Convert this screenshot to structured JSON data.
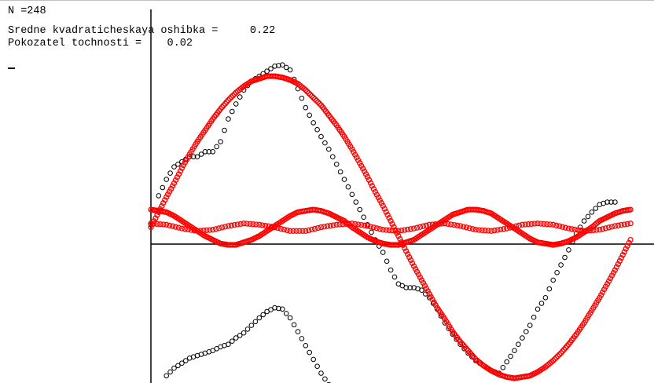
{
  "header": {
    "n_line": "N =248",
    "rms_line": "Sredne kvadraticheskaya oshibka =     0.22",
    "accuracy_line": "Pokozatel tochnosti =    0.02",
    "cursor": "_"
  },
  "colors": {
    "background": "#ffffff",
    "axis": "#000000",
    "data_markers": "#000000",
    "fit_markers": "#ff0000"
  },
  "chart_data": {
    "type": "scatter",
    "title": "",
    "xlabel": "",
    "ylabel": "",
    "xlim": [
      0,
      6.28
    ],
    "ylim": [
      -1.3,
      1.45
    ],
    "grid": false,
    "legend": "none",
    "series": [
      {
        "marker": "circle-open",
        "color": "#000000",
        "points": [
          [
            0.0,
            0.02
          ],
          [
            0.1,
            0.25
          ],
          [
            0.2,
            0.38
          ],
          [
            0.3,
            0.48
          ],
          [
            0.4,
            0.52
          ],
          [
            0.5,
            0.56
          ],
          [
            0.6,
            0.56
          ],
          [
            0.7,
            0.6
          ],
          [
            0.8,
            0.6
          ],
          [
            0.9,
            0.68
          ],
          [
            1.0,
            0.86
          ],
          [
            1.1,
            0.98
          ],
          [
            1.2,
            1.09
          ],
          [
            1.3,
            1.16
          ],
          [
            1.4,
            1.2
          ],
          [
            1.5,
            1.24
          ],
          [
            1.6,
            1.28
          ],
          [
            1.7,
            1.29
          ],
          [
            1.8,
            1.25
          ],
          [
            1.9,
            1.1
          ],
          [
            2.0,
            0.95
          ],
          [
            2.1,
            0.83
          ],
          [
            2.2,
            0.72
          ],
          [
            2.3,
            0.62
          ],
          [
            2.4,
            0.5
          ],
          [
            2.5,
            0.38
          ],
          [
            2.6,
            0.26
          ],
          [
            2.7,
            0.14
          ],
          [
            2.8,
            0.02
          ],
          [
            2.9,
            -0.1
          ],
          [
            3.0,
            -0.2
          ],
          [
            3.1,
            -0.34
          ],
          [
            3.2,
            -0.45
          ],
          [
            3.3,
            -0.48
          ],
          [
            3.4,
            -0.48
          ],
          [
            3.5,
            -0.5
          ],
          [
            3.6,
            -0.56
          ],
          [
            3.7,
            -0.65
          ],
          [
            3.8,
            -0.76
          ],
          [
            3.9,
            -0.85
          ],
          [
            4.0,
            -0.93
          ],
          [
            4.1,
            -1.0
          ],
          [
            4.2,
            -1.06
          ],
          [
            4.3,
            -1.1
          ],
          [
            4.4,
            -1.14
          ],
          [
            4.5,
            -1.16
          ],
          [
            4.6,
            -1.07
          ],
          [
            4.7,
            -0.98
          ],
          [
            4.8,
            -0.88
          ],
          [
            4.9,
            -0.78
          ],
          [
            5.0,
            -0.65
          ],
          [
            5.1,
            -0.56
          ],
          [
            5.2,
            -0.42
          ],
          [
            5.3,
            -0.3
          ],
          [
            5.4,
            -0.18
          ],
          [
            5.5,
            -0.05
          ],
          [
            5.6,
            0.05
          ],
          [
            5.7,
            0.12
          ],
          [
            5.8,
            0.18
          ],
          [
            5.9,
            0.2
          ],
          [
            6.0,
            0.2
          ]
        ]
      },
      {
        "marker": "circle-open",
        "color": "#000000",
        "points": [
          [
            0.2,
            -1.18
          ],
          [
            0.3,
            -1.12
          ],
          [
            0.4,
            -1.08
          ],
          [
            0.5,
            -1.04
          ],
          [
            0.6,
            -1.02
          ],
          [
            0.7,
            -1.0
          ],
          [
            0.8,
            -0.98
          ],
          [
            0.9,
            -0.95
          ],
          [
            1.0,
            -0.93
          ],
          [
            1.1,
            -0.88
          ],
          [
            1.2,
            -0.84
          ],
          [
            1.3,
            -0.78
          ],
          [
            1.4,
            -0.72
          ],
          [
            1.5,
            -0.67
          ],
          [
            1.6,
            -0.64
          ],
          [
            1.7,
            -0.65
          ],
          [
            1.8,
            -0.72
          ],
          [
            1.9,
            -0.83
          ],
          [
            2.0,
            -0.94
          ],
          [
            2.1,
            -1.05
          ],
          [
            2.2,
            -1.16
          ],
          [
            2.3,
            -1.25
          ],
          [
            2.4,
            -1.28
          ]
        ]
      },
      {
        "marker": "circle-open",
        "color": "#ff0000",
        "function": "1.2*sin(x)",
        "points": [
          [
            0.0,
            0.0
          ],
          [
            0.1,
            0.12
          ],
          [
            0.2,
            0.24
          ],
          [
            0.3,
            0.35
          ],
          [
            0.4,
            0.47
          ],
          [
            0.5,
            0.58
          ],
          [
            0.6,
            0.68
          ],
          [
            0.7,
            0.77
          ],
          [
            0.8,
            0.86
          ],
          [
            0.9,
            0.94
          ],
          [
            1.0,
            1.01
          ],
          [
            1.1,
            1.07
          ],
          [
            1.2,
            1.12
          ],
          [
            1.3,
            1.16
          ],
          [
            1.4,
            1.18
          ],
          [
            1.5,
            1.2
          ],
          [
            1.6,
            1.2
          ],
          [
            1.7,
            1.19
          ],
          [
            1.8,
            1.17
          ],
          [
            1.9,
            1.14
          ],
          [
            2.0,
            1.09
          ],
          [
            2.1,
            1.03
          ],
          [
            2.2,
            0.97
          ],
          [
            2.3,
            0.89
          ],
          [
            2.4,
            0.81
          ],
          [
            2.5,
            0.72
          ],
          [
            2.6,
            0.62
          ],
          [
            2.7,
            0.51
          ],
          [
            2.8,
            0.4
          ],
          [
            2.9,
            0.28
          ],
          [
            3.0,
            0.17
          ],
          [
            3.1,
            0.05
          ],
          [
            3.2,
            -0.07
          ],
          [
            3.3,
            -0.19
          ],
          [
            3.4,
            -0.31
          ],
          [
            3.5,
            -0.42
          ],
          [
            3.6,
            -0.53
          ],
          [
            3.7,
            -0.64
          ],
          [
            3.8,
            -0.73
          ],
          [
            3.9,
            -0.83
          ],
          [
            4.0,
            -0.91
          ],
          [
            4.1,
            -0.98
          ],
          [
            4.2,
            -1.05
          ],
          [
            4.3,
            -1.1
          ],
          [
            4.4,
            -1.14
          ],
          [
            4.5,
            -1.17
          ],
          [
            4.6,
            -1.19
          ],
          [
            4.7,
            -1.2
          ],
          [
            4.8,
            -1.19
          ],
          [
            4.9,
            -1.18
          ],
          [
            5.0,
            -1.15
          ],
          [
            5.1,
            -1.11
          ],
          [
            5.2,
            -1.06
          ],
          [
            5.3,
            -1.0
          ],
          [
            5.4,
            -0.93
          ],
          [
            5.5,
            -0.85
          ],
          [
            5.6,
            -0.76
          ],
          [
            5.7,
            -0.66
          ],
          [
            5.8,
            -0.56
          ],
          [
            5.9,
            -0.45
          ],
          [
            6.0,
            -0.34
          ],
          [
            6.1,
            -0.22
          ],
          [
            6.2,
            -0.1
          ]
        ]
      },
      {
        "marker": "circle-open",
        "color": "#ff0000",
        "function": "0.14*cos(3x)",
        "points": [
          [
            0.0,
            0.14
          ],
          [
            0.1,
            0.13
          ],
          [
            0.2,
            0.12
          ],
          [
            0.3,
            0.09
          ],
          [
            0.4,
            0.05
          ],
          [
            0.5,
            0.01
          ],
          [
            0.6,
            -0.03
          ],
          [
            0.7,
            -0.07
          ],
          [
            0.8,
            -0.1
          ],
          [
            0.9,
            -0.13
          ],
          [
            1.0,
            -0.14
          ],
          [
            1.1,
            -0.14
          ],
          [
            1.2,
            -0.12
          ],
          [
            1.3,
            -0.1
          ],
          [
            1.4,
            -0.07
          ],
          [
            1.5,
            -0.03
          ],
          [
            1.6,
            0.01
          ],
          [
            1.7,
            0.05
          ],
          [
            1.8,
            0.09
          ],
          [
            1.9,
            0.12
          ],
          [
            2.0,
            0.13
          ],
          [
            2.1,
            0.14
          ],
          [
            2.2,
            0.13
          ],
          [
            2.3,
            0.11
          ],
          [
            2.4,
            0.08
          ],
          [
            2.5,
            0.05
          ],
          [
            2.6,
            0.0
          ],
          [
            2.7,
            -0.04
          ],
          [
            2.8,
            -0.08
          ],
          [
            2.9,
            -0.11
          ],
          [
            3.0,
            -0.13
          ],
          [
            3.1,
            -0.14
          ],
          [
            3.2,
            -0.14
          ],
          [
            3.3,
            -0.12
          ],
          [
            3.4,
            -0.1
          ],
          [
            3.5,
            -0.06
          ],
          [
            3.6,
            -0.02
          ],
          [
            3.7,
            0.02
          ],
          [
            3.8,
            0.06
          ],
          [
            3.9,
            0.1
          ],
          [
            4.0,
            0.12
          ],
          [
            4.1,
            0.14
          ],
          [
            4.2,
            0.14
          ],
          [
            4.3,
            0.13
          ],
          [
            4.4,
            0.11
          ],
          [
            4.5,
            0.07
          ],
          [
            4.6,
            0.03
          ],
          [
            4.7,
            -0.01
          ],
          [
            4.8,
            -0.05
          ],
          [
            4.9,
            -0.09
          ],
          [
            5.0,
            -0.12
          ],
          [
            5.1,
            -0.13
          ],
          [
            5.2,
            -0.14
          ],
          [
            5.3,
            -0.13
          ],
          [
            5.4,
            -0.11
          ],
          [
            5.5,
            -0.08
          ],
          [
            5.6,
            -0.04
          ],
          [
            5.7,
            0.0
          ],
          [
            5.8,
            0.05
          ],
          [
            5.9,
            0.08
          ],
          [
            6.0,
            0.11
          ],
          [
            6.1,
            0.13
          ],
          [
            6.2,
            0.14
          ]
        ]
      },
      {
        "marker": "circle-open",
        "color": "#ff0000",
        "function": "0.03*cos(5x)",
        "points": [
          [
            0.0,
            0.03
          ],
          [
            0.2,
            0.02
          ],
          [
            0.4,
            -0.01
          ],
          [
            0.6,
            -0.03
          ],
          [
            0.8,
            -0.02
          ],
          [
            1.0,
            0.01
          ],
          [
            1.2,
            0.03
          ],
          [
            1.4,
            0.02
          ],
          [
            1.6,
            -0.0
          ],
          [
            1.8,
            -0.03
          ],
          [
            2.0,
            -0.03
          ],
          [
            2.2,
            -0.0
          ],
          [
            2.4,
            0.02
          ],
          [
            2.6,
            0.03
          ],
          [
            2.8,
            0.01
          ],
          [
            3.0,
            -0.02
          ],
          [
            3.2,
            -0.03
          ],
          [
            3.4,
            -0.01
          ],
          [
            3.6,
            0.02
          ],
          [
            3.8,
            0.03
          ],
          [
            4.0,
            0.01
          ],
          [
            4.2,
            -0.02
          ],
          [
            4.4,
            -0.03
          ],
          [
            4.6,
            -0.01
          ],
          [
            4.8,
            0.02
          ],
          [
            5.0,
            0.03
          ],
          [
            5.2,
            0.02
          ],
          [
            5.4,
            -0.01
          ],
          [
            5.6,
            -0.03
          ],
          [
            5.8,
            -0.02
          ],
          [
            6.0,
            0.01
          ],
          [
            6.2,
            0.03
          ]
        ]
      }
    ]
  }
}
